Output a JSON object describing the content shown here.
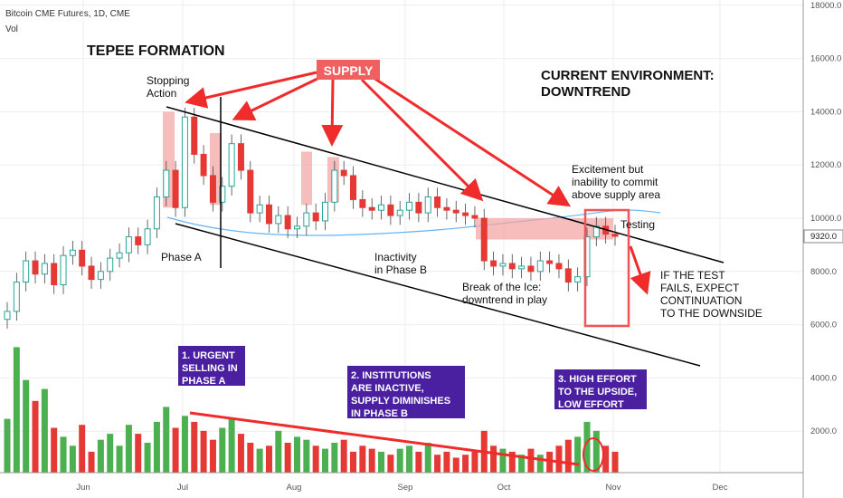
{
  "header": {
    "symbol": "Bitcoin CME Futures, 1D, CME",
    "volume_label": "Vol"
  },
  "chart_data": {
    "type": "candlestick",
    "y_ticks": [
      "18000.0",
      "16000.0",
      "14000.0",
      "12000.0",
      "10000.0",
      "8000.0",
      "6000.0",
      "4000.0",
      "2000.0"
    ],
    "x_ticks": [
      "Jun",
      "Jul",
      "Aug",
      "Sep",
      "Oct",
      "Nov",
      "Dec"
    ],
    "last_price_label": "9320.0",
    "ylim": [
      0,
      18000
    ],
    "grid": true,
    "price_path": [
      6500,
      7600,
      8400,
      7900,
      8300,
      7500,
      8600,
      8800,
      8200,
      7700,
      8000,
      8500,
      8700,
      9300,
      9000,
      9600,
      10800,
      11800,
      10400,
      13800,
      12400,
      11600,
      10600,
      11200,
      12800,
      11800,
      10200,
      10500,
      9800,
      10100,
      9600,
      9700,
      10200,
      9900,
      10600,
      11800,
      11600,
      10700,
      10400,
      10300,
      10500,
      10100,
      10300,
      10600,
      10200,
      10800,
      10400,
      10300,
      10200,
      10100,
      10000,
      8400,
      8200,
      8300,
      8100,
      8200,
      8000,
      8400,
      8300,
      8100,
      7600,
      7800,
      9300,
      9700,
      9400,
      9320
    ],
    "volume_path": [
      1800,
      4200,
      3100,
      2400,
      2800,
      1500,
      1200,
      900,
      1600,
      700,
      1100,
      1300,
      900,
      1600,
      1300,
      1000,
      1700,
      2200,
      1500,
      1900,
      1700,
      1400,
      1100,
      1500,
      1800,
      1300,
      1000,
      800,
      900,
      1400,
      1000,
      1200,
      1100,
      900,
      800,
      1000,
      1100,
      700,
      900,
      800,
      700,
      600,
      800,
      900,
      700,
      1000,
      600,
      700,
      500,
      600,
      700,
      1400,
      900,
      800,
      700,
      600,
      800,
      600,
      700,
      900,
      1100,
      1200,
      1700,
      1400,
      900,
      700
    ]
  },
  "annotations": {
    "title": "TEPEE FORMATION",
    "supply": "SUPPLY",
    "stopping_action": [
      "Stopping",
      "Action"
    ],
    "current_env": [
      "CURRENT ENVIRONMENT:",
      "DOWNTREND"
    ],
    "excitement": [
      "Excitement but",
      "inability to commit",
      "above supply area"
    ],
    "testing": "Testing",
    "phase_a": "Phase A",
    "inactivity": [
      "Inactivity",
      "in Phase B"
    ],
    "break_ice": [
      "Break of the Ice:",
      "downtrend in play"
    ],
    "if_test": [
      "IF THE TEST",
      "FAILS, EXPECT",
      "CONTINUATION",
      "TO THE DOWNSIDE"
    ],
    "box1": [
      "1. URGENT",
      "SELLING IN",
      "PHASE A"
    ],
    "box2": [
      "2. INSTITUTIONS",
      "ARE INACTIVE,",
      "SUPPLY DIMINISHES",
      "IN PHASE B"
    ],
    "box3": [
      "3. HIGH EFFORT",
      "TO THE UPSIDE,",
      "LOW EFFORT"
    ]
  },
  "colors": {
    "up": "#26a69a",
    "down": "#e53935",
    "vol_up": "#4caf50",
    "vol_down": "#e53935",
    "annot_red": "#f02b2b",
    "box_purple": "#4a1fa0",
    "ma": "#64b5f6",
    "supply_fill": "#f4a6a6"
  }
}
